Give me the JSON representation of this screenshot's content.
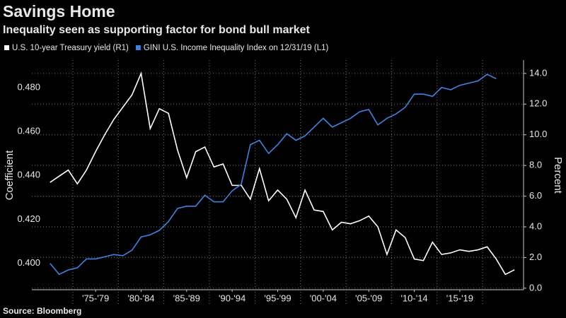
{
  "chart_data": {
    "type": "line",
    "title": "Savings Home",
    "subtitle": "Inequality seen as supporting factor for bond bull market",
    "source": "Source: Bloomberg",
    "ylabel": "Coefficient",
    "y2label": "Percent",
    "xlim": [
      1968,
      2022
    ],
    "xticks": [
      {
        "value": 1975,
        "label": "'75-'79"
      },
      {
        "value": 1980,
        "label": "'80-'84"
      },
      {
        "value": 1985,
        "label": "'85-'89"
      },
      {
        "value": 1990,
        "label": "'90-'94"
      },
      {
        "value": 1995,
        "label": "'95-'99"
      },
      {
        "value": 2000,
        "label": "'00-'04"
      },
      {
        "value": 2005,
        "label": "'05-'09"
      },
      {
        "value": 2010,
        "label": "'10-'14"
      },
      {
        "value": 2015,
        "label": "'15-'19"
      }
    ],
    "ylim": [
      0.388,
      0.4925
    ],
    "yticks": [
      {
        "value": 0.4,
        "label": "0.400"
      },
      {
        "value": 0.42,
        "label": "0.420"
      },
      {
        "value": 0.44,
        "label": "0.440"
      },
      {
        "value": 0.46,
        "label": "0.460"
      },
      {
        "value": 0.48,
        "label": "0.480"
      }
    ],
    "y2lim": [
      -0.1,
      14.87
    ],
    "y2ticks": [
      {
        "value": 0,
        "label": "0.0"
      },
      {
        "value": 2,
        "label": "2.0"
      },
      {
        "value": 4,
        "label": "4.0"
      },
      {
        "value": 6,
        "label": "6.0"
      },
      {
        "value": 8,
        "label": "8.0"
      },
      {
        "value": 10,
        "label": "10.0"
      },
      {
        "value": 12,
        "label": "12.0"
      },
      {
        "value": 14,
        "label": "14.0"
      }
    ],
    "grid": true,
    "series": [
      {
        "name": "U.S. 10-year Treasury yield (R1)",
        "color": "#ffffff",
        "axis": "y2",
        "x": [
          1970,
          1971,
          1972,
          1973,
          1974,
          1975,
          1976,
          1977,
          1978,
          1979,
          1980,
          1981,
          1982,
          1983,
          1984,
          1985,
          1986,
          1987,
          1988,
          1989,
          1990,
          1991,
          1992,
          1993,
          1994,
          1995,
          1996,
          1997,
          1998,
          1999,
          2000,
          2001,
          2002,
          2003,
          2004,
          2005,
          2006,
          2007,
          2008,
          2009,
          2010,
          2011,
          2012,
          2013,
          2014,
          2015,
          2016,
          2017,
          2018,
          2019,
          2020,
          2021
        ],
        "values": [
          6.9,
          7.3,
          7.7,
          6.8,
          7.7,
          8.9,
          10.0,
          11.0,
          11.8,
          12.6,
          14.0,
          10.4,
          11.7,
          11.4,
          9.0,
          7.2,
          8.9,
          9.2,
          7.9,
          8.1,
          6.7,
          6.7,
          5.8,
          7.8,
          5.7,
          6.4,
          5.8,
          4.6,
          6.4,
          5.1,
          5.0,
          3.8,
          4.3,
          4.2,
          4.4,
          4.7,
          4.0,
          2.2,
          3.8,
          3.3,
          1.9,
          1.8,
          3.0,
          2.2,
          2.3,
          2.5,
          2.4,
          2.5,
          2.7,
          1.9,
          0.9,
          1.2
        ]
      },
      {
        "name": "GINI U.S. Income Inequality Index on 12/31/19 (L1)",
        "color": "#3f82e0",
        "axis": "y",
        "x": [
          1970,
          1971,
          1972,
          1973,
          1974,
          1975,
          1976,
          1977,
          1978,
          1979,
          1980,
          1981,
          1982,
          1983,
          1984,
          1985,
          1986,
          1987,
          1988,
          1989,
          1990,
          1991,
          1992,
          1993,
          1994,
          1995,
          1996,
          1997,
          1998,
          1999,
          2000,
          2001,
          2002,
          2003,
          2004,
          2005,
          2006,
          2007,
          2008,
          2009,
          2010,
          2011,
          2012,
          2013,
          2014,
          2015,
          2016,
          2017,
          2018,
          2019
        ],
        "values": [
          0.4,
          0.395,
          0.397,
          0.398,
          0.402,
          0.402,
          0.403,
          0.404,
          0.4035,
          0.406,
          0.412,
          0.413,
          0.415,
          0.419,
          0.425,
          0.426,
          0.426,
          0.431,
          0.428,
          0.428,
          0.433,
          0.436,
          0.454,
          0.456,
          0.45,
          0.454,
          0.459,
          0.456,
          0.458,
          0.462,
          0.466,
          0.462,
          0.464,
          0.466,
          0.469,
          0.47,
          0.463,
          0.466,
          0.468,
          0.471,
          0.477,
          0.477,
          0.476,
          0.48,
          0.479,
          0.481,
          0.482,
          0.483,
          0.486,
          0.484
        ]
      }
    ]
  }
}
